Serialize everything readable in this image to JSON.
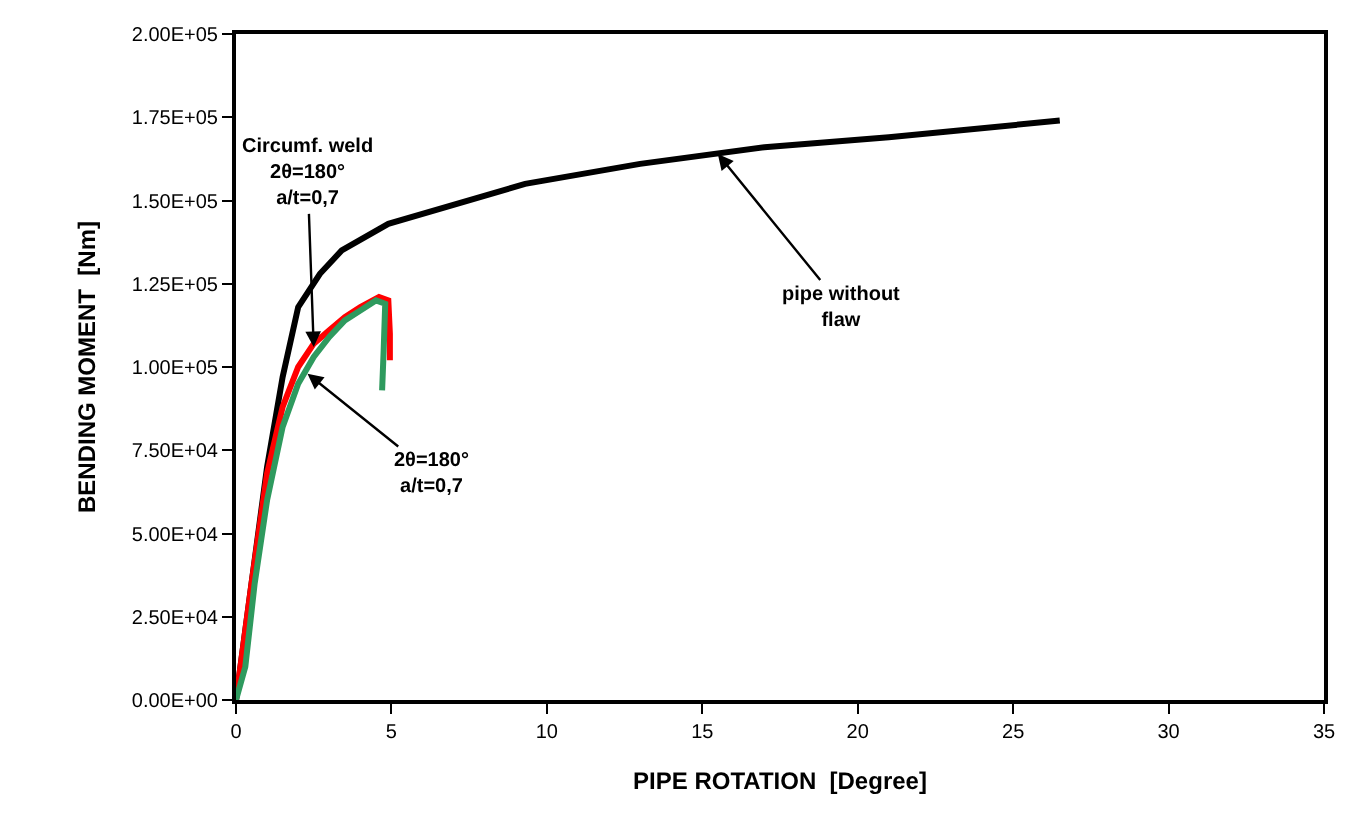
{
  "chart_data": {
    "type": "line",
    "xlabel": "PIPE ROTATION  [Degree]",
    "ylabel": "BENDING MOMENT  [Nm]",
    "xlim": [
      0,
      35
    ],
    "xticks": [
      0,
      5,
      10,
      15,
      20,
      25,
      30,
      35
    ],
    "ylim": [
      0,
      200000
    ],
    "yticks": [
      {
        "value": 0,
        "label": "0.00E+00"
      },
      {
        "value": 25000,
        "label": "2.50E+04"
      },
      {
        "value": 50000,
        "label": "5.00E+04"
      },
      {
        "value": 75000,
        "label": "7.50E+04"
      },
      {
        "value": 100000,
        "label": "1.00E+05"
      },
      {
        "value": 125000,
        "label": "1.25E+05"
      },
      {
        "value": 150000,
        "label": "1.50E+05"
      },
      {
        "value": 175000,
        "label": "1.75E+05"
      },
      {
        "value": 200000,
        "label": "2.00E+05"
      }
    ],
    "marker": "none",
    "line_style": "solid",
    "series": [
      {
        "color": "#000000",
        "x": [
          0,
          0.5,
          1,
          1.5,
          2,
          2.7,
          3.4,
          4.9,
          9.3,
          13,
          17,
          21,
          26.5
        ],
        "values": [
          0,
          35000,
          70000,
          97000,
          118000,
          128000,
          135000,
          143000,
          155000,
          161000,
          166000,
          169000,
          174000
        ]
      },
      {
        "color": "#ff0000",
        "x": [
          0,
          0.5,
          1,
          1.5,
          2,
          2.5,
          3,
          3.5,
          4,
          4.6,
          4.9,
          4.95,
          4.95
        ],
        "values": [
          0,
          35000,
          68000,
          88000,
          100000,
          107000,
          111000,
          115000,
          118000,
          121000,
          120000,
          110000,
          102000
        ]
      },
      {
        "color": "#2e9a5e",
        "x": [
          0,
          0.3,
          0.6,
          1,
          1.5,
          2,
          2.5,
          3,
          3.5,
          4,
          4.5,
          4.8,
          4.75,
          4.7
        ],
        "values": [
          0,
          10000,
          35000,
          60000,
          82000,
          95000,
          103000,
          109000,
          114000,
          117000,
          120000,
          119000,
          105000,
          93000
        ]
      }
    ],
    "annotations": [
      {
        "text": "Circumf. weld\n2θ=180°\na/t=0,7",
        "x": 2.5,
        "y": 106000
      },
      {
        "text": "2θ=180°\na/t=0,7",
        "x": 2.3,
        "y": 98000
      },
      {
        "text": "pipe without\nflaw",
        "x": 15.5,
        "y": 164000
      }
    ]
  }
}
